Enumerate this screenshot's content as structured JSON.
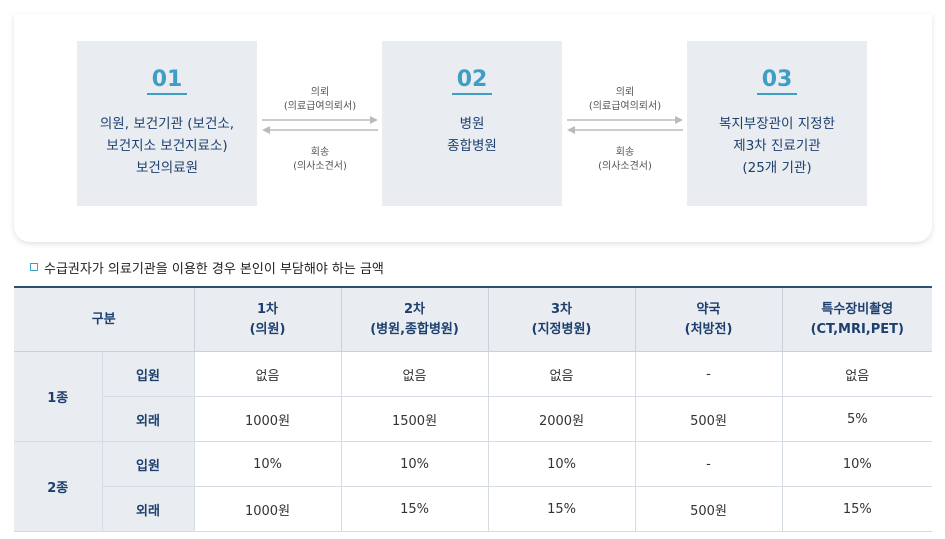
{
  "flow": {
    "steps": [
      {
        "num": "01",
        "lines": [
          "의원, 보건기관 (보건소,",
          "보건지소 보건지료소)",
          "보건의료원"
        ]
      },
      {
        "num": "02",
        "lines": [
          "병원",
          "종합병원"
        ]
      },
      {
        "num": "03",
        "lines": [
          "복지부장관이 지정한",
          "제3차 진료기관",
          "(25개 기관)"
        ]
      }
    ],
    "arrows": [
      {
        "top1": "의뢰",
        "top2": "(의료급여의뢰서)",
        "bot1": "회송",
        "bot2": "(의사소견서)"
      },
      {
        "top1": "의뢰",
        "top2": "(의료급여의뢰서)",
        "bot1": "회송",
        "bot2": "(의사소견서)"
      }
    ]
  },
  "section_title": "수급권자가 의료기관을 이용한 경우 본인이 부담해야 하는 금액",
  "table": {
    "headers": [
      {
        "l1": "구분",
        "l2": ""
      },
      {
        "l1": "1차",
        "l2": "(의원)"
      },
      {
        "l1": "2차",
        "l2": "(병원,종합병원)"
      },
      {
        "l1": "3차",
        "l2": "(지정병원)"
      },
      {
        "l1": "약국",
        "l2": "(처방전)"
      },
      {
        "l1": "특수장비촬영",
        "l2": "(CT,MRI,PET)"
      }
    ],
    "groups": [
      {
        "name": "1종",
        "rows": [
          {
            "type": "입원",
            "cells": [
              "없음",
              "없음",
              "없음",
              "-",
              "없음"
            ]
          },
          {
            "type": "외래",
            "cells": [
              "1000원",
              "1500원",
              "2000원",
              "500원",
              "5%"
            ]
          }
        ]
      },
      {
        "name": "2종",
        "rows": [
          {
            "type": "입원",
            "cells": [
              "10%",
              "10%",
              "10%",
              "-",
              "10%"
            ]
          },
          {
            "type": "외래",
            "cells": [
              "1000원",
              "15%",
              "15%",
              "500원",
              "15%"
            ]
          }
        ]
      }
    ]
  }
}
